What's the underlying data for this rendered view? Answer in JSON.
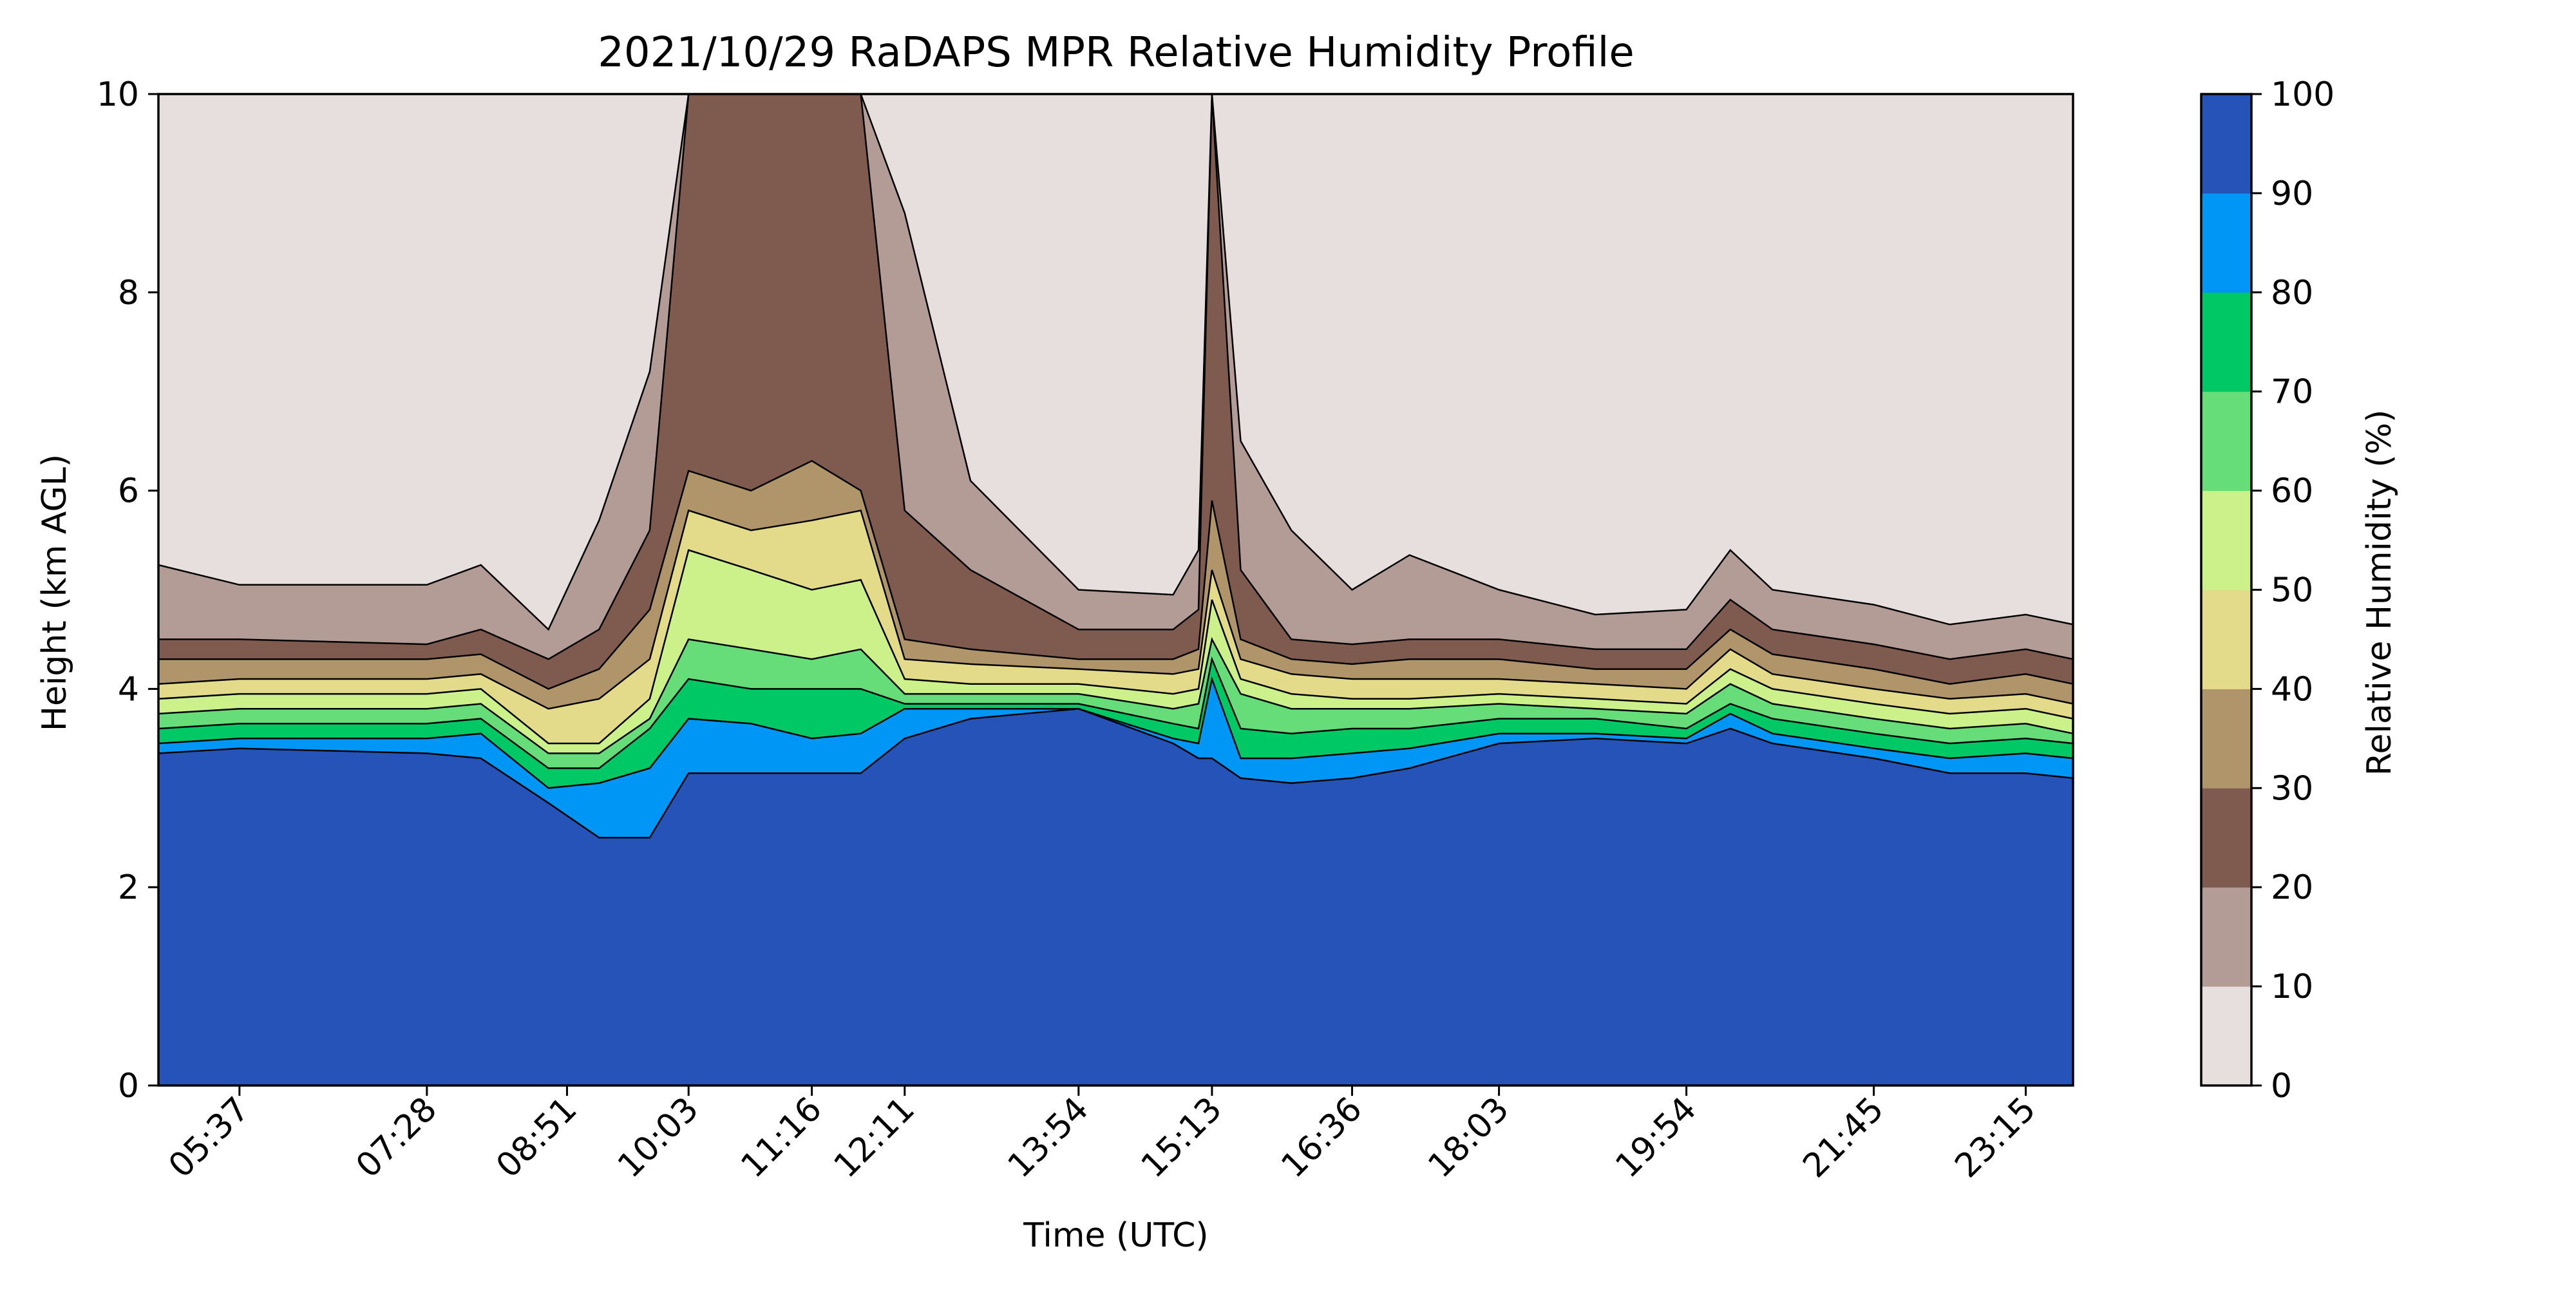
{
  "chart_data": {
    "type": "area",
    "title": "2021/10/29 RaDAPS MPR Relative Humidity Profile",
    "xlabel": "Time (UTC)",
    "ylabel": "Height (km AGL)",
    "colorbar_label": "Relative Humidity (%)",
    "xlim": [
      "04:49",
      "23:43"
    ],
    "ylim": [
      0,
      10
    ],
    "x_ticks": [
      "05:37",
      "07:28",
      "08:51",
      "10:03",
      "11:16",
      "12:11",
      "13:54",
      "15:13",
      "16:36",
      "18:03",
      "19:54",
      "21:45",
      "23:15"
    ],
    "y_ticks": [
      0,
      2,
      4,
      6,
      8,
      10
    ],
    "colorbar_ticks": [
      0,
      10,
      20,
      30,
      40,
      50,
      60,
      70,
      80,
      90,
      100
    ],
    "levels": [
      0,
      10,
      20,
      30,
      40,
      50,
      60,
      70,
      80,
      90,
      100
    ],
    "level_colors": [
      "#e6dfdd",
      "#b39c96",
      "#7f5a4f",
      "#b0956a",
      "#e3db8a",
      "#ccf18a",
      "#67dd79",
      "#00c864",
      "#0096f5",
      "#2653b7"
    ],
    "contour_line_color": "#000000",
    "series": [
      {
        "lower_rh": 10,
        "x": [
          "04:49",
          "05:37",
          "07:28",
          "08:00",
          "08:40",
          "09:10",
          "09:40",
          "10:03",
          "10:40",
          "11:16",
          "11:45",
          "12:11",
          "12:50",
          "13:54",
          "14:50",
          "15:05",
          "15:13",
          "15:30",
          "16:00",
          "16:36",
          "17:10",
          "18:03",
          "19:00",
          "19:54",
          "20:20",
          "20:45",
          "21:45",
          "22:30",
          "23:15",
          "23:43"
        ],
        "height_km": [
          5.25,
          5.05,
          5.05,
          5.25,
          4.6,
          5.7,
          7.2,
          10,
          10,
          10,
          10,
          8.8,
          6.1,
          5.0,
          4.95,
          5.4,
          10,
          6.5,
          5.6,
          5.0,
          5.35,
          5.0,
          4.75,
          4.8,
          5.4,
          5.0,
          4.85,
          4.65,
          4.75,
          4.65
        ]
      },
      {
        "lower_rh": 20,
        "x": [
          "04:49",
          "05:37",
          "07:28",
          "08:00",
          "08:40",
          "09:10",
          "09:40",
          "10:03",
          "10:40",
          "11:16",
          "11:45",
          "12:11",
          "12:50",
          "13:54",
          "14:50",
          "15:05",
          "15:13",
          "15:30",
          "16:00",
          "16:36",
          "17:10",
          "18:03",
          "19:00",
          "19:54",
          "20:20",
          "20:45",
          "21:45",
          "22:30",
          "23:15",
          "23:43"
        ],
        "height_km": [
          4.5,
          4.5,
          4.45,
          4.6,
          4.3,
          4.6,
          5.6,
          10,
          10,
          10,
          10,
          5.8,
          5.2,
          4.6,
          4.6,
          4.8,
          10,
          5.2,
          4.5,
          4.45,
          4.5,
          4.5,
          4.4,
          4.4,
          4.9,
          4.6,
          4.45,
          4.3,
          4.4,
          4.3
        ]
      },
      {
        "lower_rh": 30,
        "x": [
          "04:49",
          "05:37",
          "07:28",
          "08:00",
          "08:40",
          "09:10",
          "09:40",
          "10:03",
          "10:40",
          "11:16",
          "11:45",
          "12:11",
          "12:50",
          "13:54",
          "14:50",
          "15:05",
          "15:13",
          "15:30",
          "16:00",
          "16:36",
          "17:10",
          "18:03",
          "19:00",
          "19:54",
          "20:20",
          "20:45",
          "21:45",
          "22:30",
          "23:15",
          "23:43"
        ],
        "height_km": [
          4.3,
          4.3,
          4.3,
          4.35,
          4.0,
          4.2,
          4.8,
          6.2,
          6.0,
          6.3,
          6.0,
          4.5,
          4.4,
          4.3,
          4.3,
          4.4,
          5.9,
          4.5,
          4.3,
          4.25,
          4.3,
          4.3,
          4.2,
          4.2,
          4.6,
          4.35,
          4.2,
          4.05,
          4.15,
          4.05
        ]
      },
      {
        "lower_rh": 40,
        "x": [
          "04:49",
          "05:37",
          "07:28",
          "08:00",
          "08:40",
          "09:10",
          "09:40",
          "10:03",
          "10:40",
          "11:16",
          "11:45",
          "12:11",
          "12:50",
          "13:54",
          "14:50",
          "15:05",
          "15:13",
          "15:30",
          "16:00",
          "16:36",
          "17:10",
          "18:03",
          "19:00",
          "19:54",
          "20:20",
          "20:45",
          "21:45",
          "22:30",
          "23:15",
          "23:43"
        ],
        "height_km": [
          4.05,
          4.1,
          4.1,
          4.15,
          3.8,
          3.9,
          4.3,
          5.8,
          5.6,
          5.7,
          5.8,
          4.3,
          4.25,
          4.2,
          4.15,
          4.2,
          5.2,
          4.3,
          4.15,
          4.1,
          4.1,
          4.1,
          4.05,
          4.0,
          4.4,
          4.15,
          4.0,
          3.9,
          3.95,
          3.85
        ]
      },
      {
        "lower_rh": 50,
        "x": [
          "04:49",
          "05:37",
          "07:28",
          "08:00",
          "08:40",
          "09:10",
          "09:40",
          "10:03",
          "10:40",
          "11:16",
          "11:45",
          "12:11",
          "12:50",
          "13:54",
          "14:50",
          "15:05",
          "15:13",
          "15:30",
          "16:00",
          "16:36",
          "17:10",
          "18:03",
          "19:00",
          "19:54",
          "20:20",
          "20:45",
          "21:45",
          "22:30",
          "23:15",
          "23:43"
        ],
        "height_km": [
          3.9,
          3.95,
          3.95,
          4.0,
          3.45,
          3.45,
          3.9,
          5.4,
          5.2,
          5.0,
          5.1,
          4.1,
          4.05,
          4.05,
          3.95,
          4.0,
          4.9,
          4.1,
          3.95,
          3.9,
          3.9,
          3.95,
          3.9,
          3.85,
          4.2,
          4.0,
          3.85,
          3.75,
          3.8,
          3.7
        ]
      },
      {
        "lower_rh": 60,
        "x": [
          "04:49",
          "05:37",
          "07:28",
          "08:00",
          "08:40",
          "09:10",
          "09:40",
          "10:03",
          "10:40",
          "11:16",
          "11:45",
          "12:11",
          "12:50",
          "13:54",
          "14:50",
          "15:05",
          "15:13",
          "15:30",
          "16:00",
          "16:36",
          "17:10",
          "18:03",
          "19:00",
          "19:54",
          "20:20",
          "20:45",
          "21:45",
          "22:30",
          "23:15",
          "23:43"
        ],
        "height_km": [
          3.75,
          3.8,
          3.8,
          3.85,
          3.35,
          3.35,
          3.7,
          4.5,
          4.4,
          4.3,
          4.4,
          3.95,
          3.95,
          3.95,
          3.8,
          3.85,
          4.5,
          3.95,
          3.8,
          3.8,
          3.8,
          3.85,
          3.8,
          3.75,
          4.05,
          3.85,
          3.7,
          3.6,
          3.65,
          3.55
        ]
      },
      {
        "lower_rh": 70,
        "x": [
          "04:49",
          "05:37",
          "07:28",
          "08:00",
          "08:40",
          "09:10",
          "09:40",
          "10:03",
          "10:40",
          "11:16",
          "11:45",
          "12:11",
          "12:50",
          "13:54",
          "14:50",
          "15:05",
          "15:13",
          "15:30",
          "16:00",
          "16:36",
          "17:10",
          "18:03",
          "19:00",
          "19:54",
          "20:20",
          "20:45",
          "21:45",
          "22:30",
          "23:15",
          "23:43"
        ],
        "height_km": [
          3.6,
          3.65,
          3.65,
          3.7,
          3.2,
          3.2,
          3.6,
          4.1,
          4.0,
          4.0,
          4.0,
          3.85,
          3.85,
          3.85,
          3.65,
          3.6,
          4.3,
          3.6,
          3.55,
          3.6,
          3.6,
          3.7,
          3.7,
          3.6,
          3.85,
          3.7,
          3.55,
          3.45,
          3.5,
          3.45
        ]
      },
      {
        "lower_rh": 80,
        "x": [
          "04:49",
          "05:37",
          "07:28",
          "08:00",
          "08:40",
          "09:10",
          "09:40",
          "10:03",
          "10:40",
          "11:16",
          "11:45",
          "12:11",
          "12:50",
          "13:54",
          "14:50",
          "15:05",
          "15:13",
          "15:30",
          "16:00",
          "16:36",
          "17:10",
          "18:03",
          "19:00",
          "19:54",
          "20:20",
          "20:45",
          "21:45",
          "22:30",
          "23:15",
          "23:43"
        ],
        "height_km": [
          3.45,
          3.5,
          3.5,
          3.55,
          3.0,
          3.05,
          3.2,
          3.7,
          3.65,
          3.5,
          3.55,
          3.8,
          3.8,
          3.8,
          3.5,
          3.45,
          4.1,
          3.3,
          3.3,
          3.35,
          3.4,
          3.55,
          3.55,
          3.5,
          3.75,
          3.55,
          3.4,
          3.3,
          3.35,
          3.3
        ]
      },
      {
        "lower_rh": 90,
        "x": [
          "04:49",
          "05:37",
          "07:28",
          "08:00",
          "08:40",
          "09:10",
          "09:40",
          "10:03",
          "10:40",
          "11:16",
          "11:45",
          "12:11",
          "12:50",
          "13:54",
          "14:50",
          "15:05",
          "15:13",
          "15:30",
          "16:00",
          "16:36",
          "17:10",
          "18:03",
          "19:00",
          "19:54",
          "20:20",
          "20:45",
          "21:45",
          "22:30",
          "23:15",
          "23:43"
        ],
        "height_km": [
          3.35,
          3.4,
          3.35,
          3.3,
          2.85,
          2.5,
          2.5,
          3.15,
          3.15,
          3.15,
          3.15,
          3.5,
          3.7,
          3.8,
          3.45,
          3.3,
          3.3,
          3.1,
          3.05,
          3.1,
          3.2,
          3.45,
          3.5,
          3.45,
          3.6,
          3.45,
          3.3,
          3.15,
          3.15,
          3.1
        ]
      }
    ]
  }
}
